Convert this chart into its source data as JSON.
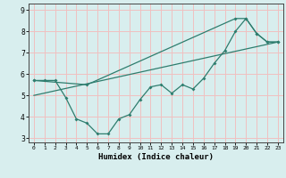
{
  "xlabel": "Humidex (Indice chaleur)",
  "xlim": [
    -0.5,
    23.5
  ],
  "ylim": [
    2.8,
    9.3
  ],
  "xticks": [
    0,
    1,
    2,
    3,
    4,
    5,
    6,
    7,
    8,
    9,
    10,
    11,
    12,
    13,
    14,
    15,
    16,
    17,
    18,
    19,
    20,
    21,
    22,
    23
  ],
  "yticks": [
    3,
    4,
    5,
    6,
    7,
    8,
    9
  ],
  "line1_x": [
    0,
    1,
    2,
    3,
    4,
    5,
    6,
    7,
    8,
    9,
    10,
    11,
    12,
    13,
    14,
    15,
    16,
    17,
    18,
    19,
    20,
    21,
    22,
    23
  ],
  "line1_y": [
    5.7,
    5.7,
    5.7,
    4.9,
    3.9,
    3.7,
    3.2,
    3.2,
    3.9,
    4.1,
    4.8,
    5.4,
    5.5,
    5.1,
    5.5,
    5.3,
    5.8,
    6.5,
    7.1,
    8.0,
    8.6,
    7.9,
    7.5,
    7.5
  ],
  "line2_x": [
    0,
    5,
    19,
    20,
    21,
    22,
    23
  ],
  "line2_y": [
    5.7,
    5.5,
    8.6,
    8.6,
    7.9,
    7.5,
    7.5
  ],
  "trend_x": [
    0,
    23
  ],
  "trend_y": [
    5.0,
    7.5
  ],
  "line_color": "#2e7d6e",
  "bg_color": "#d8eeee",
  "grid_color": "#f0c0c0"
}
